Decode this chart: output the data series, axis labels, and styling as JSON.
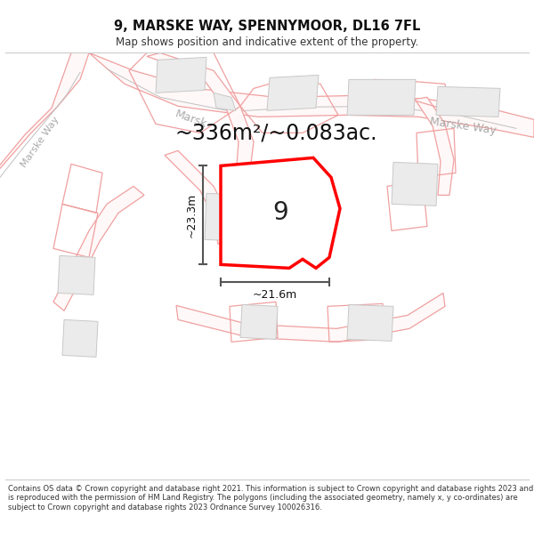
{
  "title": "9, MARSKE WAY, SPENNYMOOR, DL16 7FL",
  "subtitle": "Map shows position and indicative extent of the property.",
  "footer": "Contains OS data © Crown copyright and database right 2021. This information is subject to Crown copyright and database rights 2023 and is reproduced with the permission of HM Land Registry. The polygons (including the associated geometry, namely x, y co-ordinates) are subject to Crown copyright and database rights 2023 Ordnance Survey 100026316.",
  "area_label": "~336m²/~0.083ac.",
  "plot_number": "9",
  "dim_height": "~23.3m",
  "dim_width": "~21.6m",
  "road_label_upper": "Marske Way",
  "road_label_mid": "Marsk",
  "road_label_left": "Marske Way",
  "bg_color": "#ffffff",
  "road_line_color": "#f0a0a0",
  "road_centerline_color": "#d0d0d0",
  "building_fill": "#ebebeb",
  "building_stroke": "#c8c8c8",
  "plot_fill": "#ffffff",
  "plot_stroke": "#ff0000",
  "dim_color": "#333333",
  "label_color": "#999999"
}
